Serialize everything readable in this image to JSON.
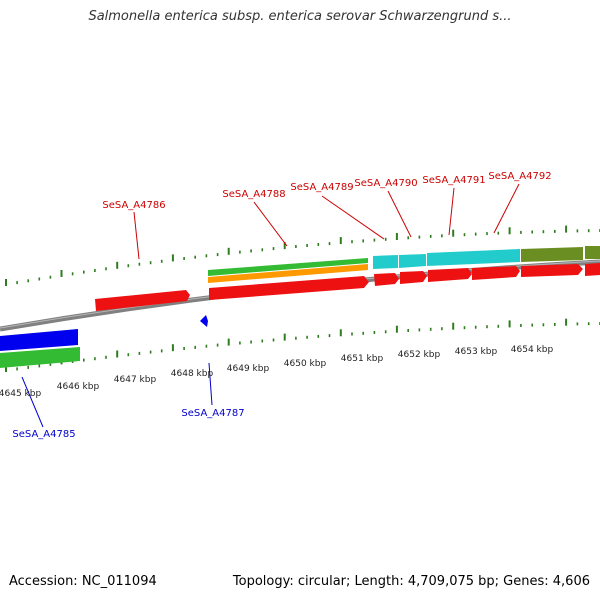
{
  "title": "Salmonella enterica subsp. enterica serovar Schwarzengrund s...",
  "footer": {
    "accession": "Accession: NC_011094",
    "info": "Topology: circular; Length: 4,709,075 bp; Genes: 4,606"
  },
  "colors": {
    "backbone": "#808080",
    "tick": "#2e7d1f",
    "forward_label": "#cc0000",
    "reverse_label": "#0000cc",
    "red_gene": "#ee1111",
    "green_gene": "#33bb33",
    "orange_gene": "#ff9900",
    "cyan_gene": "#22cccc",
    "olive_gene": "#6b8e23",
    "blue_gene": "#0000ee"
  },
  "kbp_labels": [
    "4645 kbp",
    "4646 kbp",
    "4647 kbp",
    "4648 kbp",
    "4649 kbp",
    "4650 kbp",
    "4651 kbp",
    "4652 kbp",
    "4653 kbp",
    "4654 kbp"
  ],
  "gene_labels": {
    "forward": [
      "SeSA_A4786",
      "SeSA_A4788",
      "SeSA_A4789",
      "SeSA_A4790",
      "SeSA_A4791",
      "SeSA_A4792"
    ],
    "reverse": [
      "SeSA_A4785",
      "SeSA_A4787"
    ]
  }
}
